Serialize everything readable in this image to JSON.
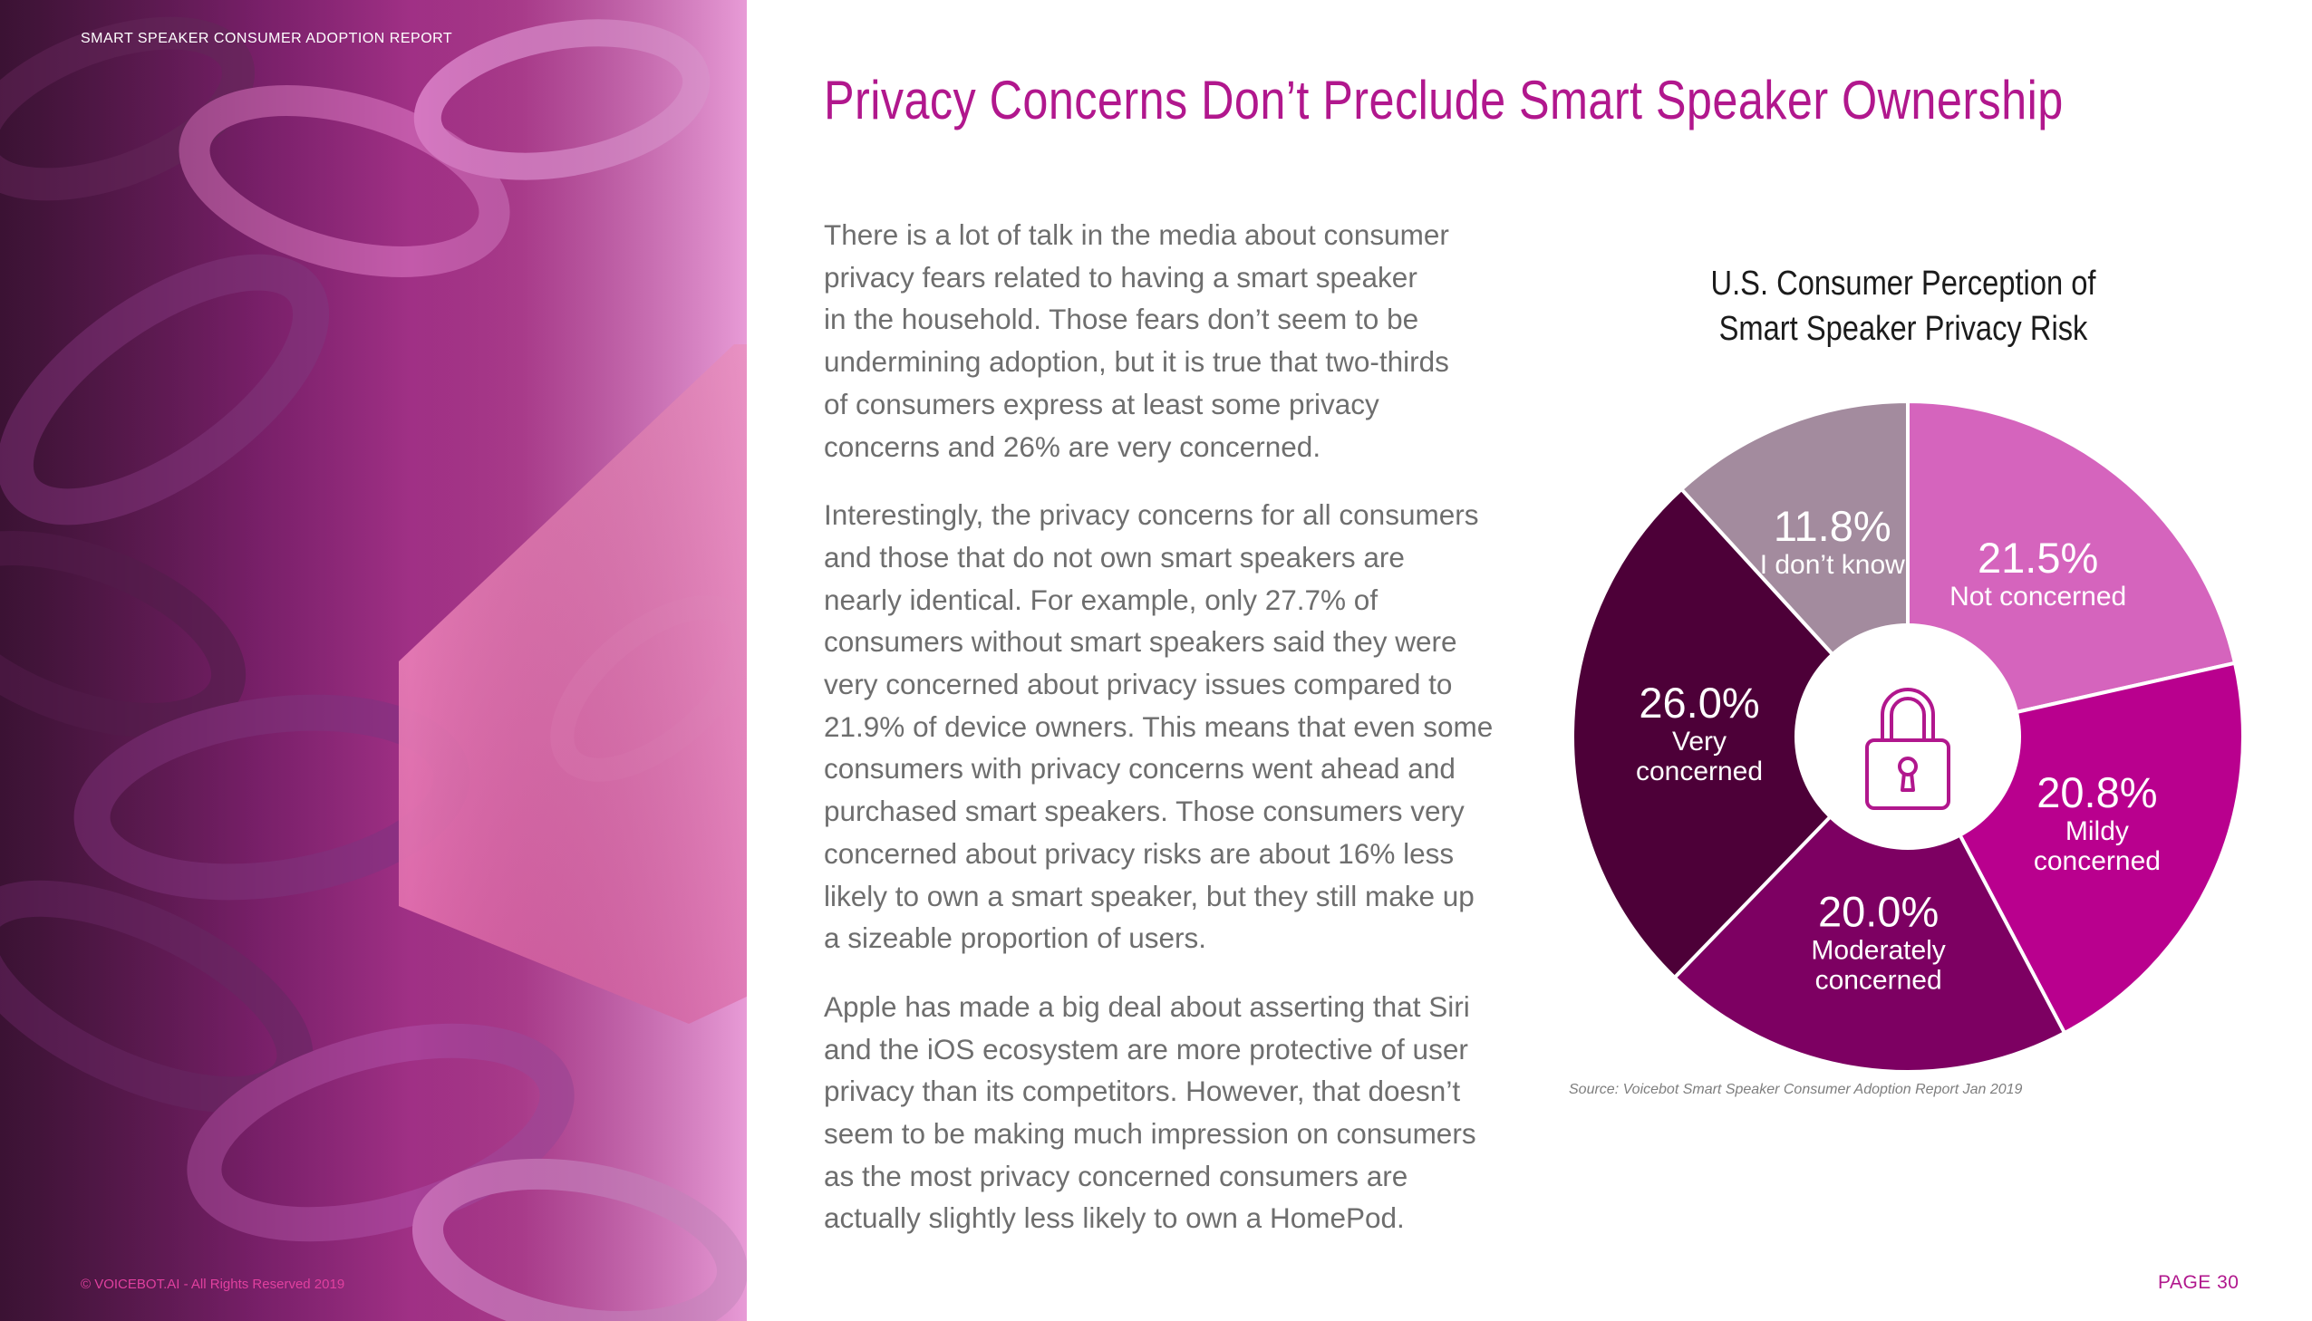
{
  "header": {
    "report_label": "SMART SPEAKER CONSUMER ADOPTION REPORT"
  },
  "title": "Privacy Concerns Don’t Preclude Smart Speaker Ownership",
  "body": {
    "paragraph_1_lines": [
      "There is a lot of talk in the media about consumer",
      "privacy fears related to having a smart speaker",
      "in the household. Those fears don’t seem to be",
      "undermining adoption, but it is true that two-thirds",
      "of consumers express at least some privacy",
      "concerns and 26% are very concerned."
    ],
    "paragraph_2_lines": [
      "Interestingly, the privacy concerns for all consumers",
      "and those that do not own smart speakers are",
      "nearly identical. For example, only 27.7% of",
      "consumers without smart speakers said they were",
      "very concerned about privacy issues compared to",
      "21.9% of device owners. This means that even some",
      "consumers with privacy concerns went ahead and",
      "purchased smart speakers. Those consumers very",
      "concerned about privacy risks are about 16% less",
      "likely to own a smart speaker, but they still make up",
      "a sizeable proportion of users."
    ],
    "paragraph_3_lines": [
      "Apple has made a big deal about asserting that Siri",
      "and the iOS ecosystem are more protective of user",
      "privacy than its competitors. However, that doesn’t",
      "seem to be making much impression on consumers",
      "as the most privacy concerned consumers are",
      "actually slightly less likely to own a HomePod."
    ]
  },
  "chart_data": {
    "type": "pie",
    "title_lines": [
      "U.S. Consumer Perception of",
      "Smart Speaker Privacy Risk"
    ],
    "center_icon": "padlock-icon",
    "slices": [
      {
        "pct_label": "21.5%",
        "label_lines": [
          "Not concerned"
        ],
        "value": 21.5,
        "color": "#d564bd"
      },
      {
        "pct_label": "20.8%",
        "label_lines": [
          "Mildy",
          "concerned"
        ],
        "value": 20.8,
        "color": "#b9008e"
      },
      {
        "pct_label": "20.0%",
        "label_lines": [
          "Moderately",
          "concerned"
        ],
        "value": 20.0,
        "color": "#7d0062"
      },
      {
        "pct_label": "26.0%",
        "label_lines": [
          "Very",
          "concerned"
        ],
        "value": 26.0,
        "color": "#4d0038"
      },
      {
        "pct_label": "11.8%",
        "label_lines": [
          "I don’t know"
        ],
        "value": 11.8,
        "color": "#a38b9e"
      }
    ],
    "source": "Source: Voicebot Smart Speaker Consumer Adoption Report Jan 2019"
  },
  "footer": {
    "copyright": "© VOICEBOT.AI - All Rights Reserved 2019",
    "page": "PAGE 30"
  },
  "colors": {
    "accent": "#b1178d",
    "body_text": "#6e6e6e"
  }
}
